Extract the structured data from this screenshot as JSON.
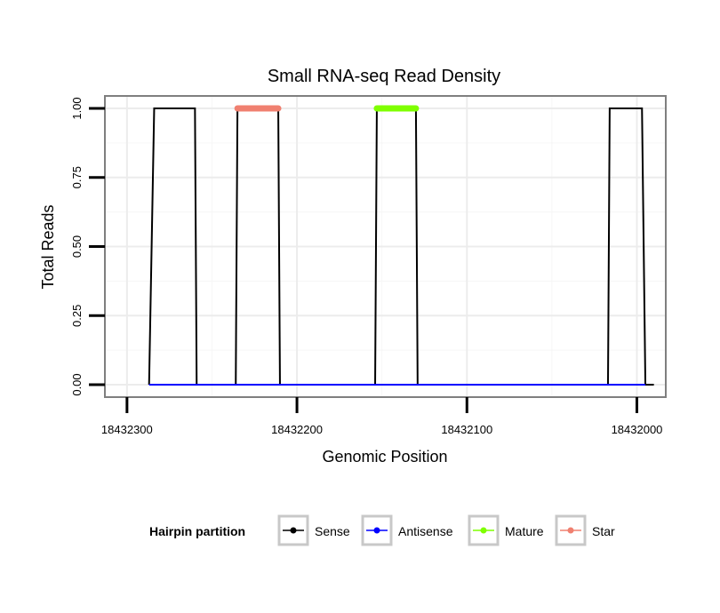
{
  "chart_data": {
    "type": "line",
    "title": "Small RNA-seq Read Density",
    "xlabel": "Genomic Position",
    "ylabel": "Total Reads",
    "xlim": [
      18432313,
      18431983
    ],
    "ylim": [
      -0.045,
      1.045
    ],
    "x_reversed": true,
    "x_ticks": [
      18432300,
      18432200,
      18432100,
      18432000
    ],
    "x_tick_labels": [
      "18432300",
      "18432200",
      "18432100",
      "18432000"
    ],
    "y_ticks": [
      0.0,
      0.25,
      0.5,
      0.75,
      1.0
    ],
    "y_tick_labels": [
      "0.00",
      "0.25",
      "0.50",
      "0.75",
      "1.00"
    ],
    "grid": true,
    "series": [
      {
        "name": "Sense",
        "color": "#000000",
        "x": [
          18432287,
          18432284,
          18432260,
          18432259,
          18432236,
          18432235,
          18432211,
          18432210,
          18432154,
          18432153,
          18432130,
          18432129,
          18432017,
          18432016,
          18431997,
          18431995,
          18431990
        ],
        "y": [
          0,
          1,
          1,
          0,
          0,
          1,
          1,
          0,
          0,
          1,
          1,
          0,
          0,
          1,
          1,
          0,
          0
        ]
      },
      {
        "name": "Antisense",
        "color": "#0000ff",
        "x": [
          18432287,
          18431995
        ],
        "y": [
          0,
          0
        ]
      },
      {
        "name": "Mature",
        "color": "#7fff00",
        "x": [
          18432153,
          18432130
        ],
        "y": [
          1,
          1
        ]
      },
      {
        "name": "Star",
        "color": "#f08070",
        "x": [
          18432235,
          18432211
        ],
        "y": [
          1,
          1
        ]
      }
    ],
    "legend": {
      "title": "Hairpin partition",
      "position": "bottom",
      "entries": [
        "Sense",
        "Antisense",
        "Mature",
        "Star"
      ]
    }
  }
}
